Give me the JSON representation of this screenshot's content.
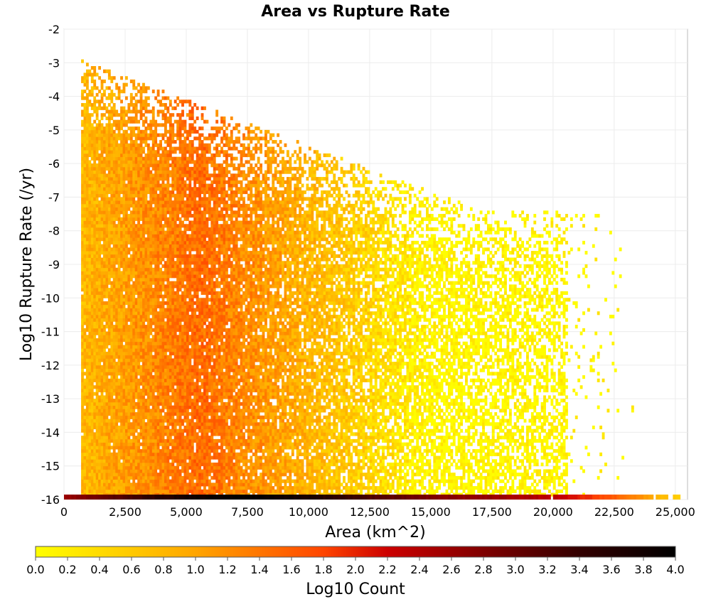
{
  "chart_data": {
    "type": "heatmap",
    "title": "Area vs Rupture Rate",
    "xlabel": "Area (km^2)",
    "ylabel": "Log10 Rupture Rate (/yr)",
    "xlim": [
      0,
      25500
    ],
    "ylim": [
      -16,
      -2
    ],
    "x_ticks": [
      "0",
      "2,500",
      "5,000",
      "7,500",
      "10,000",
      "12,500",
      "15,000",
      "17,500",
      "20,000",
      "22,500",
      "25,000"
    ],
    "x_tick_values": [
      0,
      2500,
      5000,
      7500,
      10000,
      12500,
      15000,
      17500,
      20000,
      22500,
      25000
    ],
    "y_ticks": [
      "-2",
      "-3",
      "-4",
      "-5",
      "-6",
      "-7",
      "-8",
      "-9",
      "-10",
      "-11",
      "-12",
      "-13",
      "-14",
      "-15",
      "-16"
    ],
    "y_tick_values": [
      -2,
      -3,
      -4,
      -5,
      -6,
      -7,
      -8,
      -9,
      -10,
      -11,
      -12,
      -13,
      -14,
      -15,
      -16
    ],
    "grid": true,
    "colorbar": {
      "label": "Log10 Count",
      "range": [
        0,
        4
      ],
      "ticks": [
        "0.0",
        "0.2",
        "0.4",
        "0.6",
        "0.8",
        "1.0",
        "1.2",
        "1.4",
        "1.6",
        "1.8",
        "2.0",
        "2.2",
        "2.4",
        "2.6",
        "2.8",
        "3.0",
        "3.2",
        "3.4",
        "3.6",
        "3.8",
        "4.0"
      ],
      "colors": [
        "#ffff00",
        "#ffa500",
        "#ff4500",
        "#cc0000",
        "#330000",
        "#000000"
      ]
    },
    "bin_width_x": 100,
    "bin_height_y": 0.1,
    "density_profile": {
      "area_start": 700,
      "area_end_main": 20500,
      "area_end_sparse": 23500,
      "peak_area": 5500,
      "peak_log10_count": 1.5,
      "top_rate_at_small_area": -3,
      "top_rate_at_large_area": -7.5
    },
    "bottom_row": {
      "log10_rate": -16,
      "description_values": [
        {
          "area": 0,
          "log10_count": 2.6
        },
        {
          "area": 2500,
          "log10_count": 3.2
        },
        {
          "area": 5000,
          "log10_count": 3.8
        },
        {
          "area": 7500,
          "log10_count": 4.0
        },
        {
          "area": 10000,
          "log10_count": 3.7
        },
        {
          "area": 12500,
          "log10_count": 3.2
        },
        {
          "area": 15000,
          "log10_count": 2.8
        },
        {
          "area": 17500,
          "log10_count": 2.6
        },
        {
          "area": 20000,
          "log10_count": 2.3
        },
        {
          "area": 22500,
          "log10_count": 1.6
        },
        {
          "area": 25000,
          "log10_count": 0.5
        }
      ]
    }
  }
}
